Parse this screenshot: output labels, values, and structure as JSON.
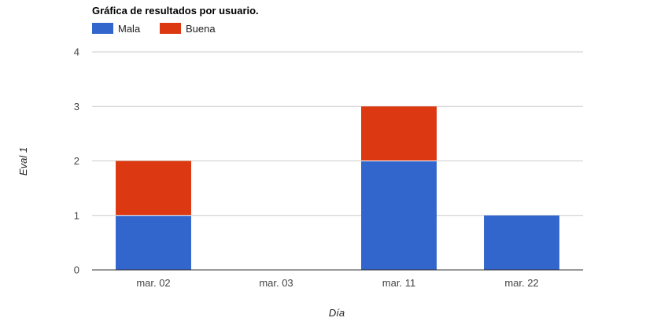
{
  "chart_data": {
    "type": "bar",
    "stacked": true,
    "title": "Gráfica de resultados por usuario.",
    "xlabel": "Día",
    "ylabel": "Eval 1",
    "categories": [
      "mar. 02",
      "mar. 03",
      "mar. 11",
      "mar. 22"
    ],
    "series": [
      {
        "name": "Mala",
        "color": "#3366cc",
        "values": [
          1,
          0,
          2,
          1
        ]
      },
      {
        "name": "Buena",
        "color": "#dc3912",
        "values": [
          1,
          0,
          1,
          0
        ]
      }
    ],
    "ylim": [
      0,
      4
    ],
    "yticks": [
      "0",
      "1",
      "2",
      "3",
      "4"
    ],
    "grid": true,
    "legend_position": "top-left"
  }
}
